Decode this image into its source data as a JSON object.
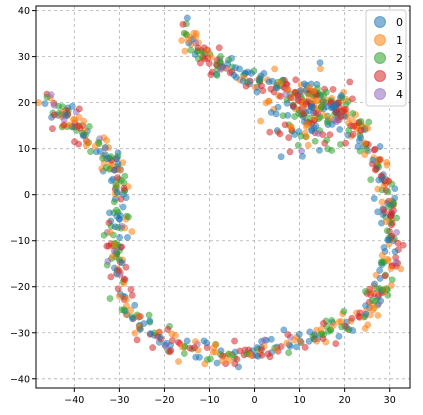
{
  "chart_data": {
    "type": "scatter",
    "title": "",
    "xlabel": "",
    "ylabel": "",
    "xlim": [
      -48.5,
      34.5
    ],
    "ylim": [
      -42,
      41
    ],
    "xticks": [
      -40,
      -30,
      -20,
      -10,
      0,
      10,
      20,
      30
    ],
    "yticks": [
      -40,
      -30,
      -20,
      -10,
      0,
      10,
      20,
      30,
      40
    ],
    "grid": true,
    "legend_position": "top-right",
    "marker_alpha": 0.55,
    "series": [
      {
        "name": "0",
        "color": "#1f77b4"
      },
      {
        "name": "1",
        "color": "#ff7f0e"
      },
      {
        "name": "2",
        "color": "#2ca02c"
      },
      {
        "name": "3",
        "color": "#d62728"
      },
      {
        "name": "4",
        "color": "#9467bd"
      }
    ],
    "points_per_series": 220,
    "shape_description": "points trace a loop: tail from (-46,21) down left arc to (-30,-5), bottom arc through (-10,-35) and (0,-34), right side up to (30,-5) and (30,0), top-right cluster around (15,20) and an upper spur to (-16,37)"
  }
}
